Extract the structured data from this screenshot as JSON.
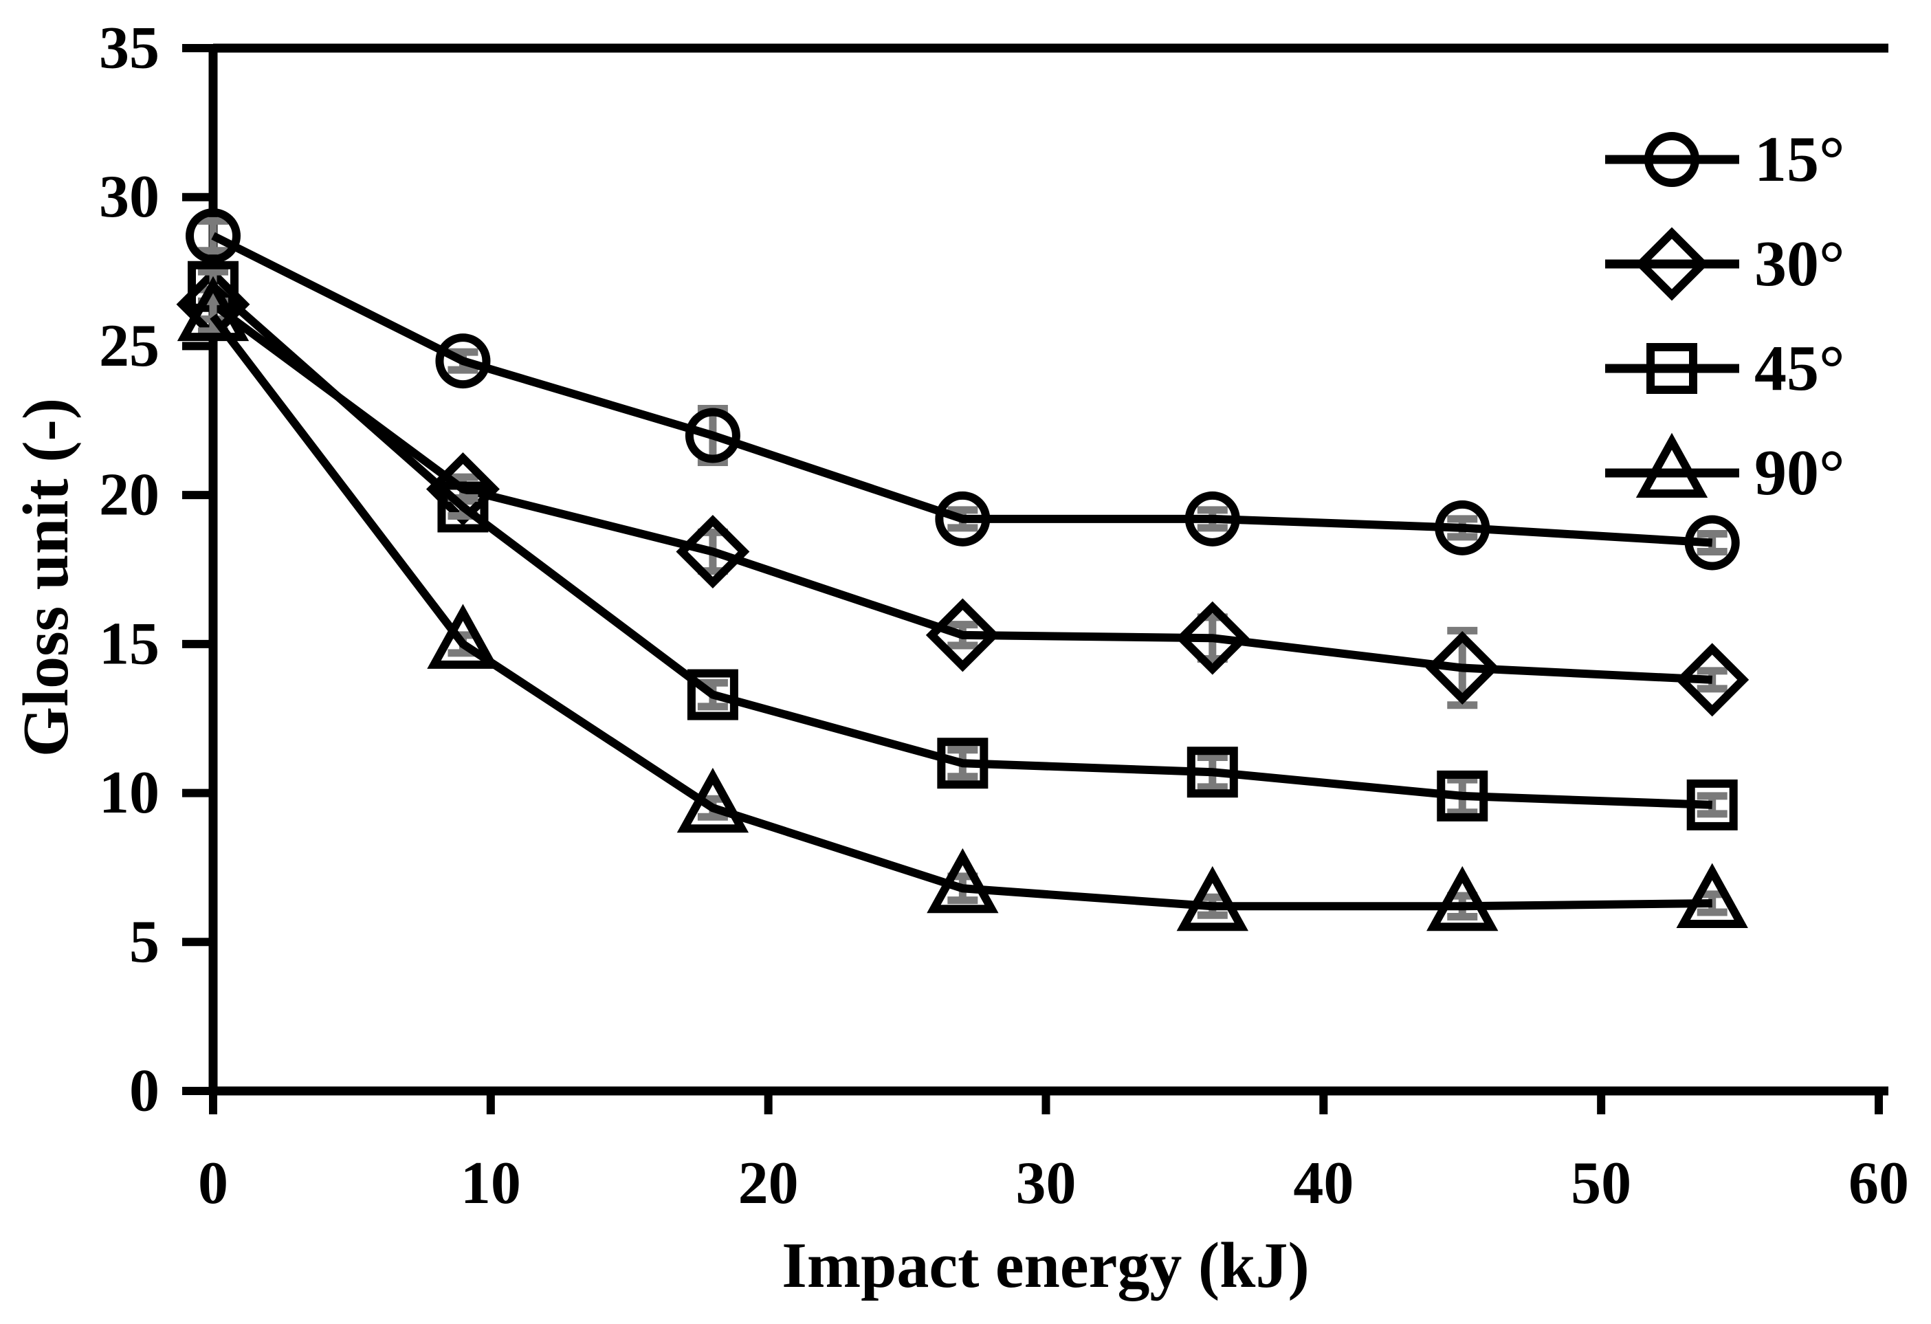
{
  "chart_data": {
    "type": "line",
    "title": "",
    "xlabel": "Impact energy (kJ)",
    "ylabel": "Gloss unit (-)",
    "x": [
      0,
      9,
      18,
      27,
      36,
      45,
      54
    ],
    "xlim": [
      0,
      60
    ],
    "ylim": [
      0,
      35
    ],
    "x_ticks": [
      0,
      10,
      20,
      30,
      40,
      50,
      60
    ],
    "y_ticks": [
      0,
      5,
      10,
      15,
      20,
      25,
      30,
      35
    ],
    "grid": false,
    "legend_position": "top-right",
    "series": [
      {
        "name": "15°",
        "marker": "circle",
        "values": [
          28.7,
          24.5,
          22.0,
          19.2,
          19.2,
          18.9,
          18.4
        ],
        "errors": [
          0.5,
          0.3,
          0.9,
          0.3,
          0.3,
          0.3,
          0.3
        ]
      },
      {
        "name": "30°",
        "marker": "diamond",
        "values": [
          26.4,
          20.2,
          18.1,
          15.3,
          15.2,
          14.2,
          13.8
        ],
        "errors": [
          0.5,
          0.4,
          0.65,
          0.35,
          0.7,
          1.25,
          0.3
        ]
      },
      {
        "name": "45°",
        "marker": "square",
        "values": [
          27.0,
          19.6,
          13.3,
          11.0,
          10.7,
          9.9,
          9.6
        ],
        "errors": [
          0.5,
          0.3,
          0.4,
          0.45,
          0.5,
          0.55,
          0.3
        ]
      },
      {
        "name": "90°",
        "marker": "triangle",
        "values": [
          26.0,
          15.0,
          9.5,
          6.8,
          6.2,
          6.2,
          6.3
        ],
        "errors": [
          0.5,
          0.3,
          0.3,
          0.4,
          0.3,
          0.35,
          0.3
        ]
      }
    ],
    "colors": {
      "line": "#000000",
      "marker_stroke": "#000000",
      "error_bar": "#7a7a7a",
      "background": "#ffffff"
    }
  }
}
